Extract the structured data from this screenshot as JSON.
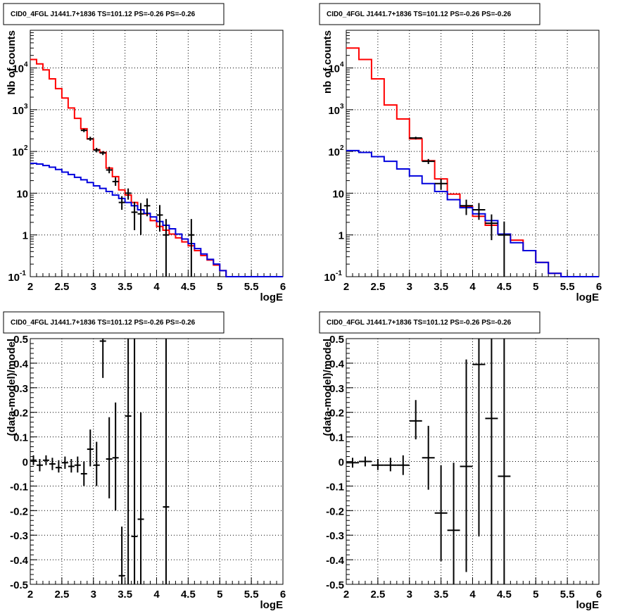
{
  "chart_data": [
    {
      "type": "line",
      "title": "CID0_4FGL J1441.7+1836 TS=101.12 PS=-0.26 PS=-0.26",
      "xlabel": "logE",
      "ylabel": "Nb of counts",
      "xlim": [
        2,
        6
      ],
      "ylim": [
        0.1,
        80000
      ],
      "yscale": "log",
      "grid": true,
      "x_ticks": [
        "2",
        "2.5",
        "3",
        "3.5",
        "4",
        "4.5",
        "5",
        "5.5",
        "6"
      ],
      "y_ticks": [
        {
          "value": 0.1,
          "base": "10",
          "exp": "-1"
        },
        {
          "value": 1,
          "base": "1",
          "exp": ""
        },
        {
          "value": 10,
          "base": "10",
          "exp": ""
        },
        {
          "value": 100,
          "base": "10",
          "exp": "2"
        },
        {
          "value": 1000,
          "base": "10",
          "exp": "3"
        },
        {
          "value": 10000,
          "base": "10",
          "exp": "4"
        }
      ],
      "bin_edges": [
        2.0,
        2.1,
        2.2,
        2.3,
        2.4,
        2.5,
        2.6,
        2.7,
        2.8,
        2.9,
        3.0,
        3.1,
        3.2,
        3.3,
        3.4,
        3.5,
        3.6,
        3.7,
        3.8,
        3.9,
        4.0,
        4.1,
        4.2,
        4.3,
        4.4,
        4.5,
        4.6,
        4.7,
        4.8,
        4.9,
        5.0,
        5.1,
        5.2,
        5.3,
        5.4,
        5.5,
        5.6,
        5.7,
        5.8,
        5.9,
        6.0
      ],
      "series": [
        {
          "color": "#ff0000",
          "style": "step",
          "values": [
            16000,
            12500,
            9000,
            5500,
            3200,
            1900,
            1100,
            620,
            350,
            200,
            110,
            95,
            40,
            25,
            12,
            9,
            6,
            4,
            3.2,
            2.2,
            1.6,
            1.3,
            1.05,
            0.85,
            0.68,
            0.55,
            0.42,
            0.32,
            0.25,
            0.19,
            0.14,
            0.1,
            0.1,
            0.1,
            0.1,
            0.1,
            0.1,
            0.1,
            0.1,
            0.1
          ]
        },
        {
          "color": "#0000dd",
          "style": "step",
          "values": [
            52,
            50,
            46,
            42,
            37,
            32,
            28,
            24,
            21,
            18,
            15,
            13,
            11,
            9,
            7.5,
            6,
            5,
            4,
            3.3,
            2.7,
            2.1,
            1.7,
            1.4,
            1.05,
            0.8,
            0.62,
            0.47,
            0.35,
            0.26,
            0.2,
            0.14,
            0.1,
            0.1,
            0.1,
            0.1,
            0.1,
            0.1,
            0.1,
            0.1,
            0.1
          ]
        }
      ],
      "data_points": [
        {
          "x": 2.85,
          "y": 320,
          "xerr": 0.05,
          "ylo": 290,
          "yhi": 350
        },
        {
          "x": 2.95,
          "y": 200,
          "xerr": 0.05,
          "ylo": 180,
          "yhi": 225
        },
        {
          "x": 3.05,
          "y": 108,
          "xerr": 0.05,
          "ylo": 95,
          "yhi": 122
        },
        {
          "x": 3.15,
          "y": 92,
          "xerr": 0.05,
          "ylo": 82,
          "yhi": 102
        },
        {
          "x": 3.25,
          "y": 36,
          "xerr": 0.05,
          "ylo": 30,
          "yhi": 43
        },
        {
          "x": 3.35,
          "y": 19,
          "xerr": 0.05,
          "ylo": 15,
          "yhi": 24
        },
        {
          "x": 3.45,
          "y": 6,
          "xerr": 0.05,
          "ylo": 4,
          "yhi": 8.5
        },
        {
          "x": 3.55,
          "y": 10,
          "xerr": 0.05,
          "ylo": 7,
          "yhi": 13
        },
        {
          "x": 3.65,
          "y": 3.5,
          "xerr": 0.05,
          "ylo": 1.3,
          "yhi": 6.2
        },
        {
          "x": 3.75,
          "y": 3.2,
          "xerr": 0.05,
          "ylo": 1.0,
          "yhi": 5.8
        },
        {
          "x": 3.85,
          "y": 5,
          "xerr": 0.05,
          "ylo": 2.8,
          "yhi": 7.5
        },
        {
          "x": 4.05,
          "y": 3,
          "xerr": 0.05,
          "ylo": 1.2,
          "yhi": 5.2
        },
        {
          "x": 4.15,
          "y": 1,
          "xerr": 0.05,
          "ylo": 0.1,
          "yhi": 2.4
        },
        {
          "x": 4.55,
          "y": 1,
          "xerr": 0.05,
          "ylo": 0.1,
          "yhi": 2.4
        }
      ]
    },
    {
      "type": "line",
      "title": "CID0_4FGL J1441.7+1836 TS=101.12 PS=-0.26 PS=-0.26",
      "xlabel": "logE",
      "ylabel": "nb of counts",
      "xlim": [
        2,
        6
      ],
      "ylim": [
        0.1,
        80000
      ],
      "yscale": "log",
      "grid": true,
      "x_ticks": [
        "2",
        "2.5",
        "3",
        "3.5",
        "4",
        "4.5",
        "5",
        "5.5",
        "6"
      ],
      "y_ticks": [
        {
          "value": 0.1,
          "base": "10",
          "exp": "-1"
        },
        {
          "value": 1,
          "base": "1",
          "exp": ""
        },
        {
          "value": 10,
          "base": "10",
          "exp": ""
        },
        {
          "value": 100,
          "base": "10",
          "exp": "2"
        },
        {
          "value": 1000,
          "base": "10",
          "exp": "3"
        },
        {
          "value": 10000,
          "base": "10",
          "exp": "4"
        }
      ],
      "bin_edges": [
        2.0,
        2.2,
        2.4,
        2.6,
        2.8,
        3.0,
        3.2,
        3.4,
        3.6,
        3.8,
        4.0,
        4.2,
        4.4,
        4.6,
        4.8,
        5.0,
        5.2,
        5.4,
        5.6,
        5.8,
        6.0
      ],
      "series": [
        {
          "color": "#ff0000",
          "style": "step",
          "values": [
            30000,
            16000,
            5500,
            1300,
            600,
            200,
            60,
            22,
            9.5,
            4.8,
            2.8,
            1.7,
            1.05,
            0.75,
            0.42,
            0.22,
            0.12,
            0.1,
            0.1,
            0.1
          ]
        },
        {
          "color": "#0000dd",
          "style": "step",
          "values": [
            105,
            95,
            75,
            58,
            38,
            26,
            17,
            11,
            7,
            4.5,
            3.2,
            2.2,
            1.05,
            0.65,
            0.42,
            0.22,
            0.12,
            0.1,
            0.1,
            0.1
          ]
        }
      ],
      "data_points": [
        {
          "x": 3.1,
          "y": 210,
          "xerr": 0.1,
          "ylo": 195,
          "yhi": 225
        },
        {
          "x": 3.3,
          "y": 58,
          "xerr": 0.1,
          "ylo": 50,
          "yhi": 66
        },
        {
          "x": 3.5,
          "y": 17,
          "xerr": 0.1,
          "ylo": 12,
          "yhi": 22
        },
        {
          "x": 3.9,
          "y": 5,
          "xerr": 0.1,
          "ylo": 3,
          "yhi": 7
        },
        {
          "x": 4.1,
          "y": 4,
          "xerr": 0.1,
          "ylo": 2.3,
          "yhi": 5.8
        },
        {
          "x": 4.3,
          "y": 1.9,
          "xerr": 0.1,
          "ylo": 0.75,
          "yhi": 3.1
        },
        {
          "x": 4.5,
          "y": 1,
          "xerr": 0.1,
          "ylo": 0.1,
          "yhi": 2.1
        }
      ]
    },
    {
      "type": "scatter",
      "title": "CID0_4FGL J1441.7+1836 TS=101.12 PS=-0.26 PS=-0.26",
      "xlabel": "logE",
      "ylabel": "(data-model)/model",
      "xlim": [
        2,
        6
      ],
      "ylim": [
        -0.5,
        0.5
      ],
      "grid": true,
      "x_ticks": [
        "2",
        "2.5",
        "3",
        "3.5",
        "4",
        "4.5",
        "5",
        "5.5",
        "6"
      ],
      "y_ticks": [
        "-0.5",
        "-0.4",
        "-0.3",
        "-0.2",
        "-0.1",
        "0",
        "0.1",
        "0.2",
        "0.3",
        "0.4",
        "0.5"
      ],
      "points": [
        {
          "x": 2.05,
          "y": 0.005,
          "xerr": 0.05,
          "ylo": -0.015,
          "yhi": 0.025
        },
        {
          "x": 2.15,
          "y": -0.015,
          "xerr": 0.05,
          "ylo": -0.04,
          "yhi": 0.01
        },
        {
          "x": 2.25,
          "y": 0.005,
          "xerr": 0.05,
          "ylo": -0.015,
          "yhi": 0.025
        },
        {
          "x": 2.35,
          "y": -0.01,
          "xerr": 0.05,
          "ylo": -0.035,
          "yhi": 0.015
        },
        {
          "x": 2.45,
          "y": -0.025,
          "xerr": 0.05,
          "ylo": -0.045,
          "yhi": 0.005
        },
        {
          "x": 2.55,
          "y": -0.005,
          "xerr": 0.05,
          "ylo": -0.03,
          "yhi": 0.02
        },
        {
          "x": 2.65,
          "y": -0.02,
          "xerr": 0.05,
          "ylo": -0.045,
          "yhi": 0.01
        },
        {
          "x": 2.75,
          "y": -0.015,
          "xerr": 0.05,
          "ylo": -0.045,
          "yhi": 0.02
        },
        {
          "x": 2.85,
          "y": -0.05,
          "xerr": 0.05,
          "ylo": -0.1,
          "yhi": 0.0
        },
        {
          "x": 2.95,
          "y": 0.05,
          "xerr": 0.05,
          "ylo": -0.02,
          "yhi": 0.13
        },
        {
          "x": 3.05,
          "y": -0.015,
          "xerr": 0.05,
          "ylo": -0.1,
          "yhi": 0.08
        },
        {
          "x": 3.15,
          "y": 0.49,
          "xerr": 0.05,
          "ylo": 0.34,
          "yhi": 0.5
        },
        {
          "x": 3.25,
          "y": 0.01,
          "xerr": 0.05,
          "ylo": -0.15,
          "yhi": 0.18
        },
        {
          "x": 3.35,
          "y": 0.015,
          "xerr": 0.05,
          "ylo": -0.2,
          "yhi": 0.24
        },
        {
          "x": 3.45,
          "y": -0.465,
          "xerr": 0.05,
          "ylo": -0.5,
          "yhi": -0.265
        },
        {
          "x": 3.55,
          "y": 0.185,
          "xerr": 0.05,
          "ylo": -0.5,
          "yhi": 0.5
        },
        {
          "x": 3.65,
          "y": -0.305,
          "xerr": 0.05,
          "ylo": -0.5,
          "yhi": 0.5
        },
        {
          "x": 3.75,
          "y": -0.235,
          "xerr": 0.05,
          "ylo": -0.5,
          "yhi": 0.2
        },
        {
          "x": 4.15,
          "y": -0.185,
          "xerr": 0.05,
          "ylo": -0.5,
          "yhi": 0.5
        }
      ]
    },
    {
      "type": "scatter",
      "title": "CID0_4FGL J1441.7+1836 TS=101.12 PS=-0.26 PS=-0.26",
      "xlabel": "logE",
      "ylabel": "(data-model)/model",
      "xlim": [
        2,
        6
      ],
      "ylim": [
        -0.5,
        0.5
      ],
      "grid": true,
      "x_ticks": [
        "2",
        "2.5",
        "3",
        "3.5",
        "4",
        "4.5",
        "5",
        "5.5",
        "6"
      ],
      "y_ticks": [
        "-0.5",
        "-0.4",
        "-0.3",
        "-0.2",
        "-0.1",
        "0",
        "0.1",
        "0.2",
        "0.3",
        "0.4",
        "0.5"
      ],
      "points": [
        {
          "x": 2.1,
          "y": -0.005,
          "xerr": 0.1,
          "ylo": -0.025,
          "yhi": 0.015
        },
        {
          "x": 2.3,
          "y": 0.0,
          "xerr": 0.1,
          "ylo": -0.02,
          "yhi": 0.02
        },
        {
          "x": 2.5,
          "y": -0.015,
          "xerr": 0.1,
          "ylo": -0.035,
          "yhi": 0.01
        },
        {
          "x": 2.7,
          "y": -0.015,
          "xerr": 0.1,
          "ylo": -0.04,
          "yhi": 0.015
        },
        {
          "x": 2.9,
          "y": -0.015,
          "xerr": 0.1,
          "ylo": -0.055,
          "yhi": 0.025
        },
        {
          "x": 3.1,
          "y": 0.165,
          "xerr": 0.1,
          "ylo": 0.09,
          "yhi": 0.25
        },
        {
          "x": 3.3,
          "y": 0.015,
          "xerr": 0.1,
          "ylo": -0.115,
          "yhi": 0.145
        },
        {
          "x": 3.5,
          "y": -0.21,
          "xerr": 0.1,
          "ylo": -0.405,
          "yhi": -0.015
        },
        {
          "x": 3.7,
          "y": -0.28,
          "xerr": 0.1,
          "ylo": -0.5,
          "yhi": -0.005
        },
        {
          "x": 3.9,
          "y": -0.02,
          "xerr": 0.1,
          "ylo": -0.45,
          "yhi": 0.415
        },
        {
          "x": 4.1,
          "y": 0.395,
          "xerr": 0.1,
          "ylo": -0.305,
          "yhi": 0.5
        },
        {
          "x": 4.3,
          "y": 0.175,
          "xerr": 0.1,
          "ylo": -0.5,
          "yhi": 0.5
        },
        {
          "x": 4.5,
          "y": -0.06,
          "xerr": 0.1,
          "ylo": -0.5,
          "yhi": 0.5
        }
      ]
    }
  ]
}
